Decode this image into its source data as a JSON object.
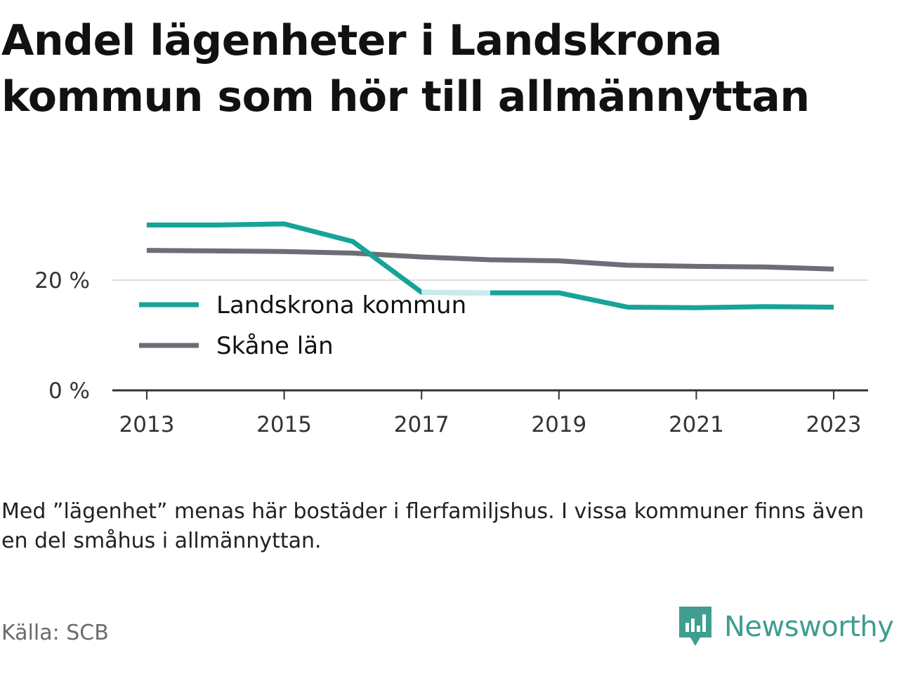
{
  "header": {
    "title_line1": "Andel lägenheter i Landskrona",
    "title_line2": "kommun som hör till allmännyttan"
  },
  "chart_data": {
    "type": "line",
    "x": [
      2013,
      2014,
      2015,
      2016,
      2017,
      2018,
      2019,
      2020,
      2021,
      2022,
      2023
    ],
    "x_tick_labels": [
      "2013",
      "2015",
      "2017",
      "2019",
      "2021",
      "2023"
    ],
    "y_tick_labels": [
      "0 %",
      "20 %"
    ],
    "y_ticks": [
      0,
      20
    ],
    "ylim": [
      0,
      33
    ],
    "grid": true,
    "legend_position": "center-left",
    "series": [
      {
        "name": "Landskrona kommun",
        "color": "#17a398",
        "values": [
          30.0,
          30.0,
          30.2,
          27.0,
          17.8,
          17.7,
          17.7,
          15.1,
          15.0,
          15.2,
          15.1
        ],
        "faded_segment": [
          2017,
          2018
        ],
        "faded_color": "#c8ecea"
      },
      {
        "name": "Skåne län",
        "color": "#6e6d76",
        "values": [
          25.4,
          25.3,
          25.2,
          24.9,
          24.2,
          23.7,
          23.5,
          22.7,
          22.5,
          22.4,
          22.0
        ]
      }
    ]
  },
  "footer": {
    "note": "Med ”lägenhet” menas här bostäder i flerfamiljshus. I vissa kommuner finns även en del småhus i allmännyttan.",
    "source": "Källa: SCB",
    "brand_name": "Newsworthy",
    "brand_color": "#3f9d91",
    "brand_icon": "bar-chart-speech-bubble-icon"
  }
}
